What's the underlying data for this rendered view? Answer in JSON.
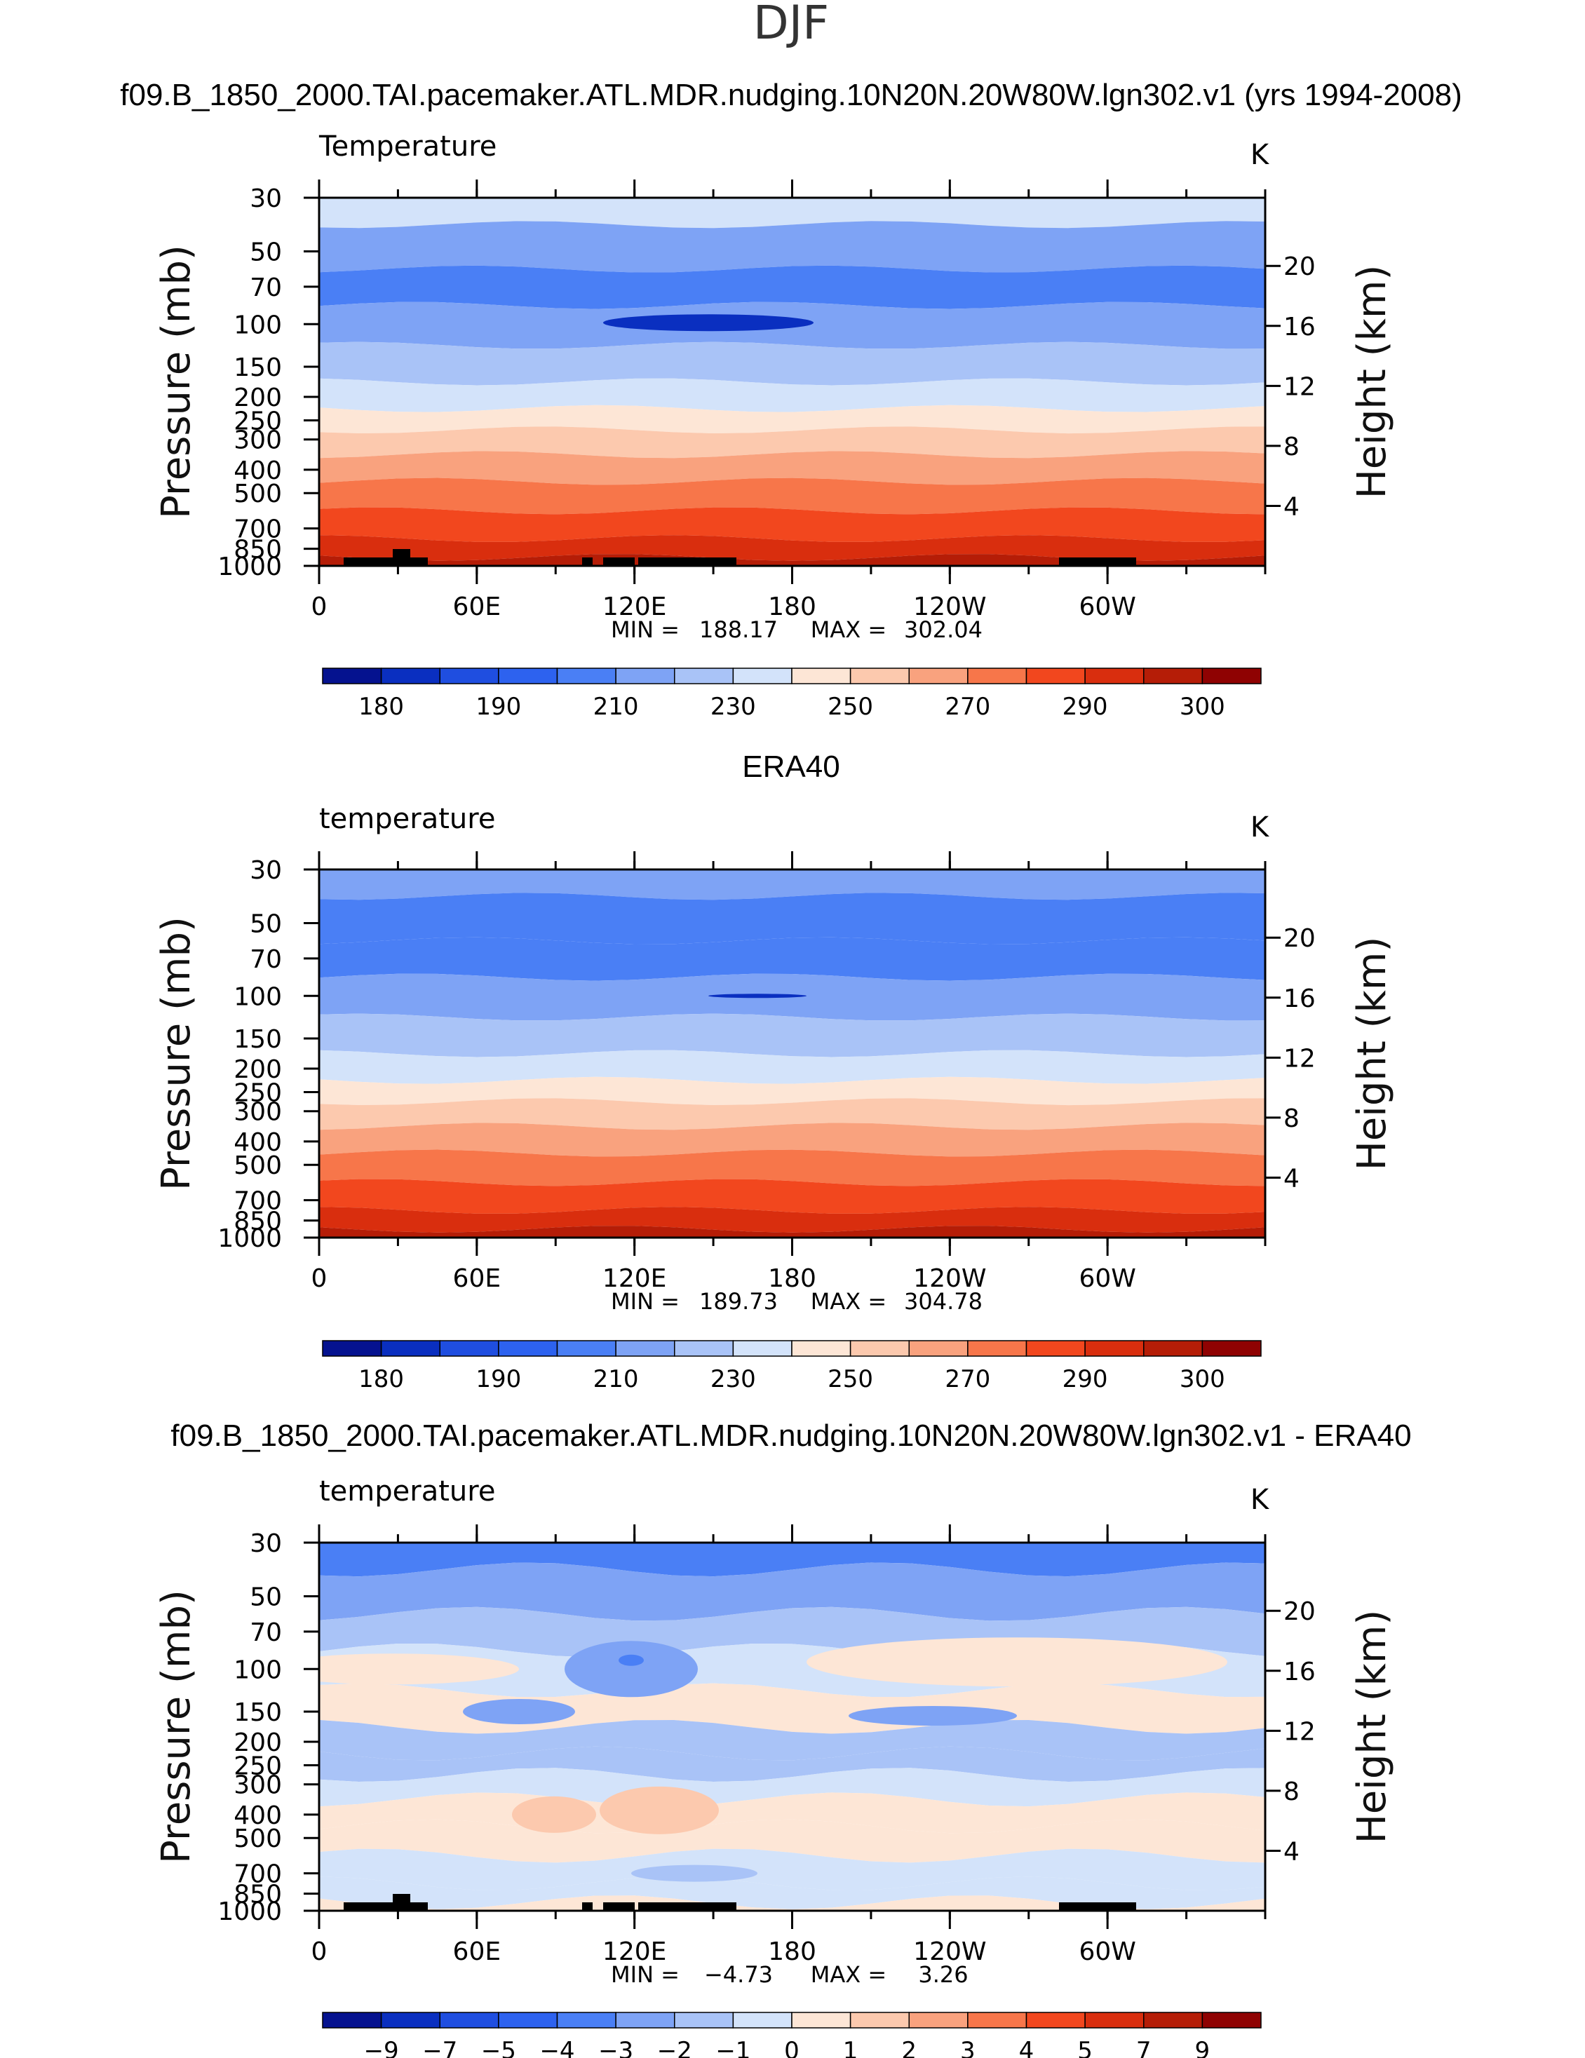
{
  "main_title": "DJF",
  "chart_data": [
    {
      "type": "heatmap",
      "title": "f09.B_1850_2000.TAI.pacemaker.ATL.MDR.nudging.10N20N.20W80W.lgn302.v1 (yrs 1994-2008)",
      "left_label": "Temperature",
      "units": "K",
      "ylabel": "Pressure (mb)",
      "ylabel_right": "Height (km)",
      "pressure_ticks": [
        "30",
        "50",
        "70",
        "100",
        "150",
        "200",
        "250",
        "300",
        "400",
        "500",
        "700",
        "850",
        "1000"
      ],
      "height_ticks": [
        "20",
        "16",
        "12",
        "8",
        "4"
      ],
      "lon_ticks": [
        "0",
        "60E",
        "120E",
        "180",
        "120W",
        "60W"
      ],
      "min_label": "MIN =",
      "min_value": "188.17",
      "max_label": "MAX =",
      "max_value": "302.04",
      "colorbar_labels": [
        "180",
        "190",
        "210",
        "230",
        "250",
        "270",
        "290",
        "300"
      ],
      "colorbar_levels": [
        180,
        185,
        190,
        200,
        210,
        220,
        230,
        240,
        250,
        260,
        270,
        280,
        290,
        295,
        300
      ],
      "palette": "abs",
      "layers": [
        235,
        212,
        208,
        213,
        222,
        230,
        241,
        252,
        262,
        272,
        281,
        291,
        296
      ],
      "topo": true
    },
    {
      "type": "heatmap",
      "title": "ERA40",
      "left_label": "temperature",
      "units": "K",
      "ylabel": "Pressure (mb)",
      "ylabel_right": "Height (km)",
      "pressure_ticks": [
        "30",
        "50",
        "70",
        "100",
        "150",
        "200",
        "250",
        "300",
        "400",
        "500",
        "700",
        "850",
        "1000"
      ],
      "height_ticks": [
        "20",
        "16",
        "12",
        "8",
        "4"
      ],
      "lon_ticks": [
        "0",
        "60E",
        "120E",
        "180",
        "120W",
        "60W"
      ],
      "min_label": "MIN =",
      "min_value": "189.73",
      "max_label": "MAX =",
      "max_value": "304.78",
      "colorbar_labels": [
        "180",
        "190",
        "210",
        "230",
        "250",
        "270",
        "290",
        "300"
      ],
      "colorbar_levels": [
        180,
        185,
        190,
        200,
        210,
        220,
        230,
        240,
        250,
        260,
        270,
        280,
        290,
        295,
        300
      ],
      "palette": "abs",
      "layers": [
        215,
        208,
        205,
        213,
        222,
        232,
        242,
        252,
        262,
        272,
        282,
        292,
        298
      ],
      "topo": false
    },
    {
      "type": "heatmap",
      "title": "f09.B_1850_2000.TAI.pacemaker.ATL.MDR.nudging.10N20N.20W80W.lgn302.v1 - ERA40",
      "left_label": "temperature",
      "units": "K",
      "ylabel": "Pressure (mb)",
      "ylabel_right": "Height (km)",
      "pressure_ticks": [
        "30",
        "50",
        "70",
        "100",
        "150",
        "200",
        "250",
        "300",
        "400",
        "500",
        "700",
        "850",
        "1000"
      ],
      "height_ticks": [
        "20",
        "16",
        "12",
        "8",
        "4"
      ],
      "lon_ticks": [
        "0",
        "60E",
        "120E",
        "180",
        "120W",
        "60W"
      ],
      "min_label": "MIN =",
      "min_value": "−4.73",
      "max_label": "MAX =",
      "max_value": "3.26",
      "colorbar_labels": [
        "−9",
        "−7",
        "−5",
        "−4",
        "−3",
        "−2",
        "−1",
        "0",
        "1",
        "2",
        "3",
        "4",
        "5",
        "7",
        "9"
      ],
      "colorbar_levels": [
        -9,
        -7,
        -5,
        -4,
        -3,
        -2,
        -1,
        0,
        1,
        2,
        3,
        4,
        5,
        7,
        9
      ],
      "palette": "diff",
      "layers": [
        -3.5,
        -2.5,
        -1.5,
        -0.5,
        0.5,
        -1.5,
        -1.5,
        -0.5,
        0.5,
        0.5,
        -0.5,
        -0.5,
        0.5
      ],
      "topo": true
    }
  ]
}
